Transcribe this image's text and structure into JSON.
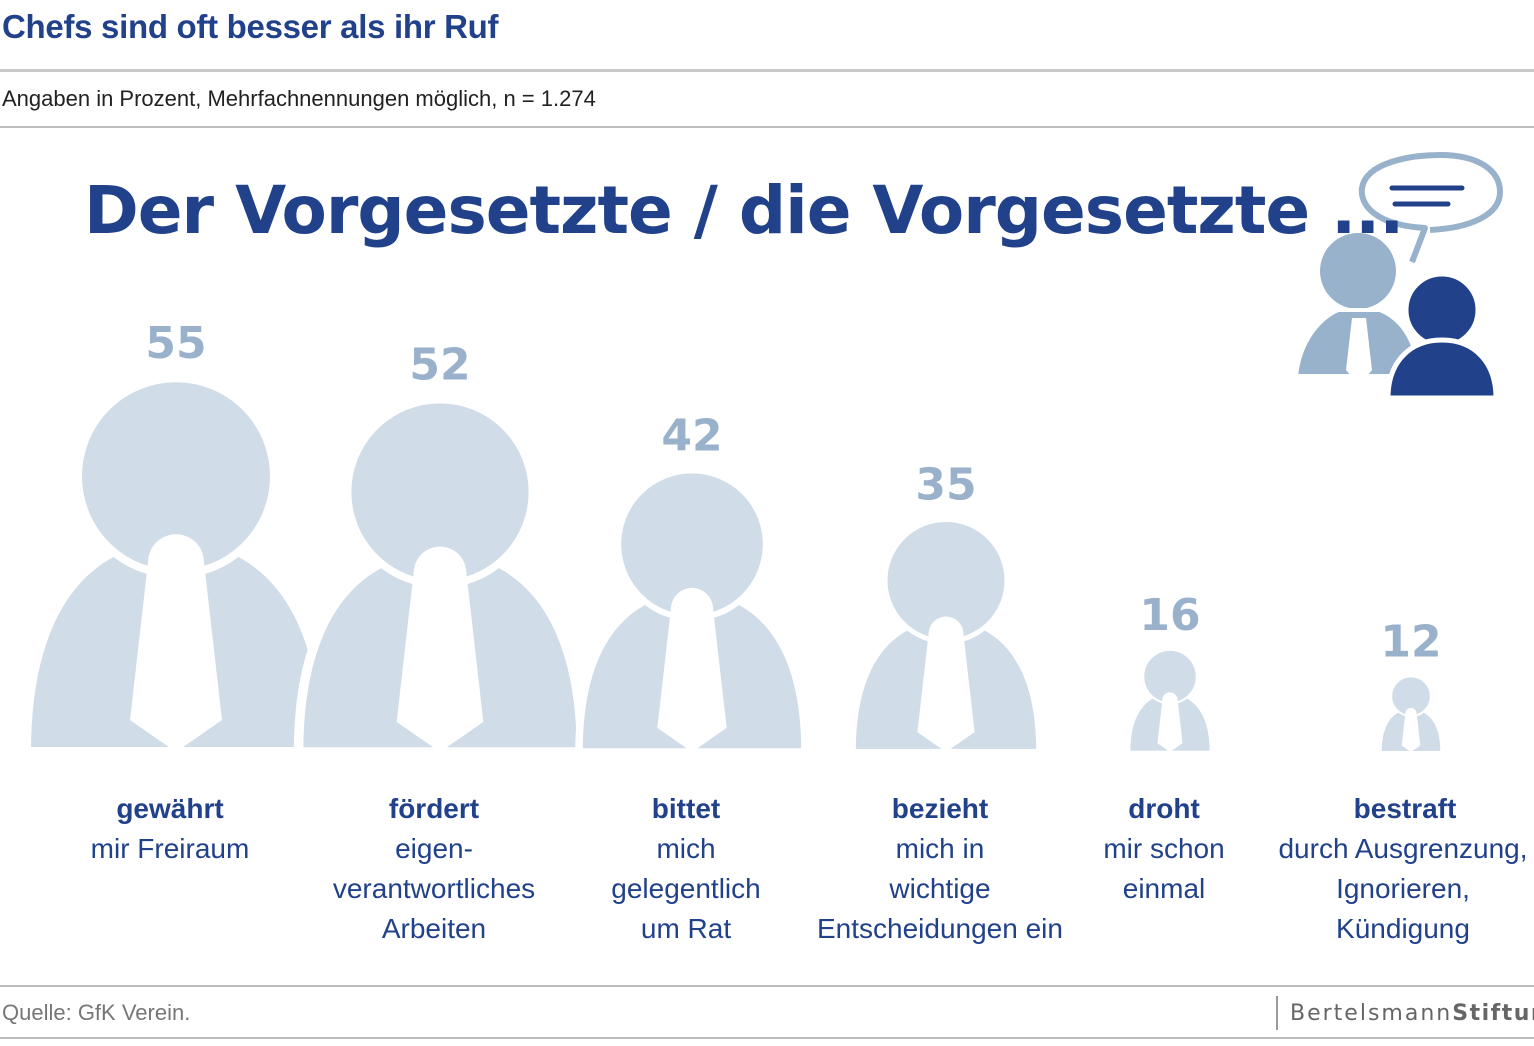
{
  "header": {
    "title": "Chefs sind oft besser als ihr Ruf",
    "subtitle": "Angaben in Prozent, Mehrfachnennungen möglich, n = 1.274",
    "headline": "Der Vorgesetzte / die Vorgesetzte ..."
  },
  "footer": {
    "source": "Quelle: GfK Verein.",
    "brand_light": "Bertelsmann",
    "brand_bold": "Stiftung"
  },
  "colors": {
    "dark_blue": "#21418a",
    "figure_fill": "#d0dce8",
    "value_text": "#9ab1cb",
    "icon_light": "#99b2cc"
  },
  "chart_data": {
    "type": "bar",
    "categories": [
      "gewährt",
      "fördert",
      "bittet",
      "bezieht",
      "droht",
      "bestraft"
    ],
    "values": [
      55,
      52,
      42,
      35,
      16,
      12
    ],
    "unit": "Prozent",
    "labels": [
      {
        "bold": "gewährt",
        "lines": [
          "mir Freiraum"
        ]
      },
      {
        "bold": "fördert",
        "lines": [
          "eigen-",
          "verantwortliches",
          "Arbeiten"
        ]
      },
      {
        "bold": "bittet",
        "lines": [
          "mich",
          "gelegentlich",
          "um Rat"
        ]
      },
      {
        "bold": "bezieht",
        "lines": [
          "mich in",
          "wichtige",
          "Entscheidungen ein"
        ]
      },
      {
        "bold": "droht",
        "lines": [
          "mir schon",
          "einmal"
        ]
      },
      {
        "bold": "bestraft",
        "lines": [
          "durch Ausgrenzung,",
          "Ignorieren,",
          "Kündigung"
        ]
      }
    ]
  }
}
